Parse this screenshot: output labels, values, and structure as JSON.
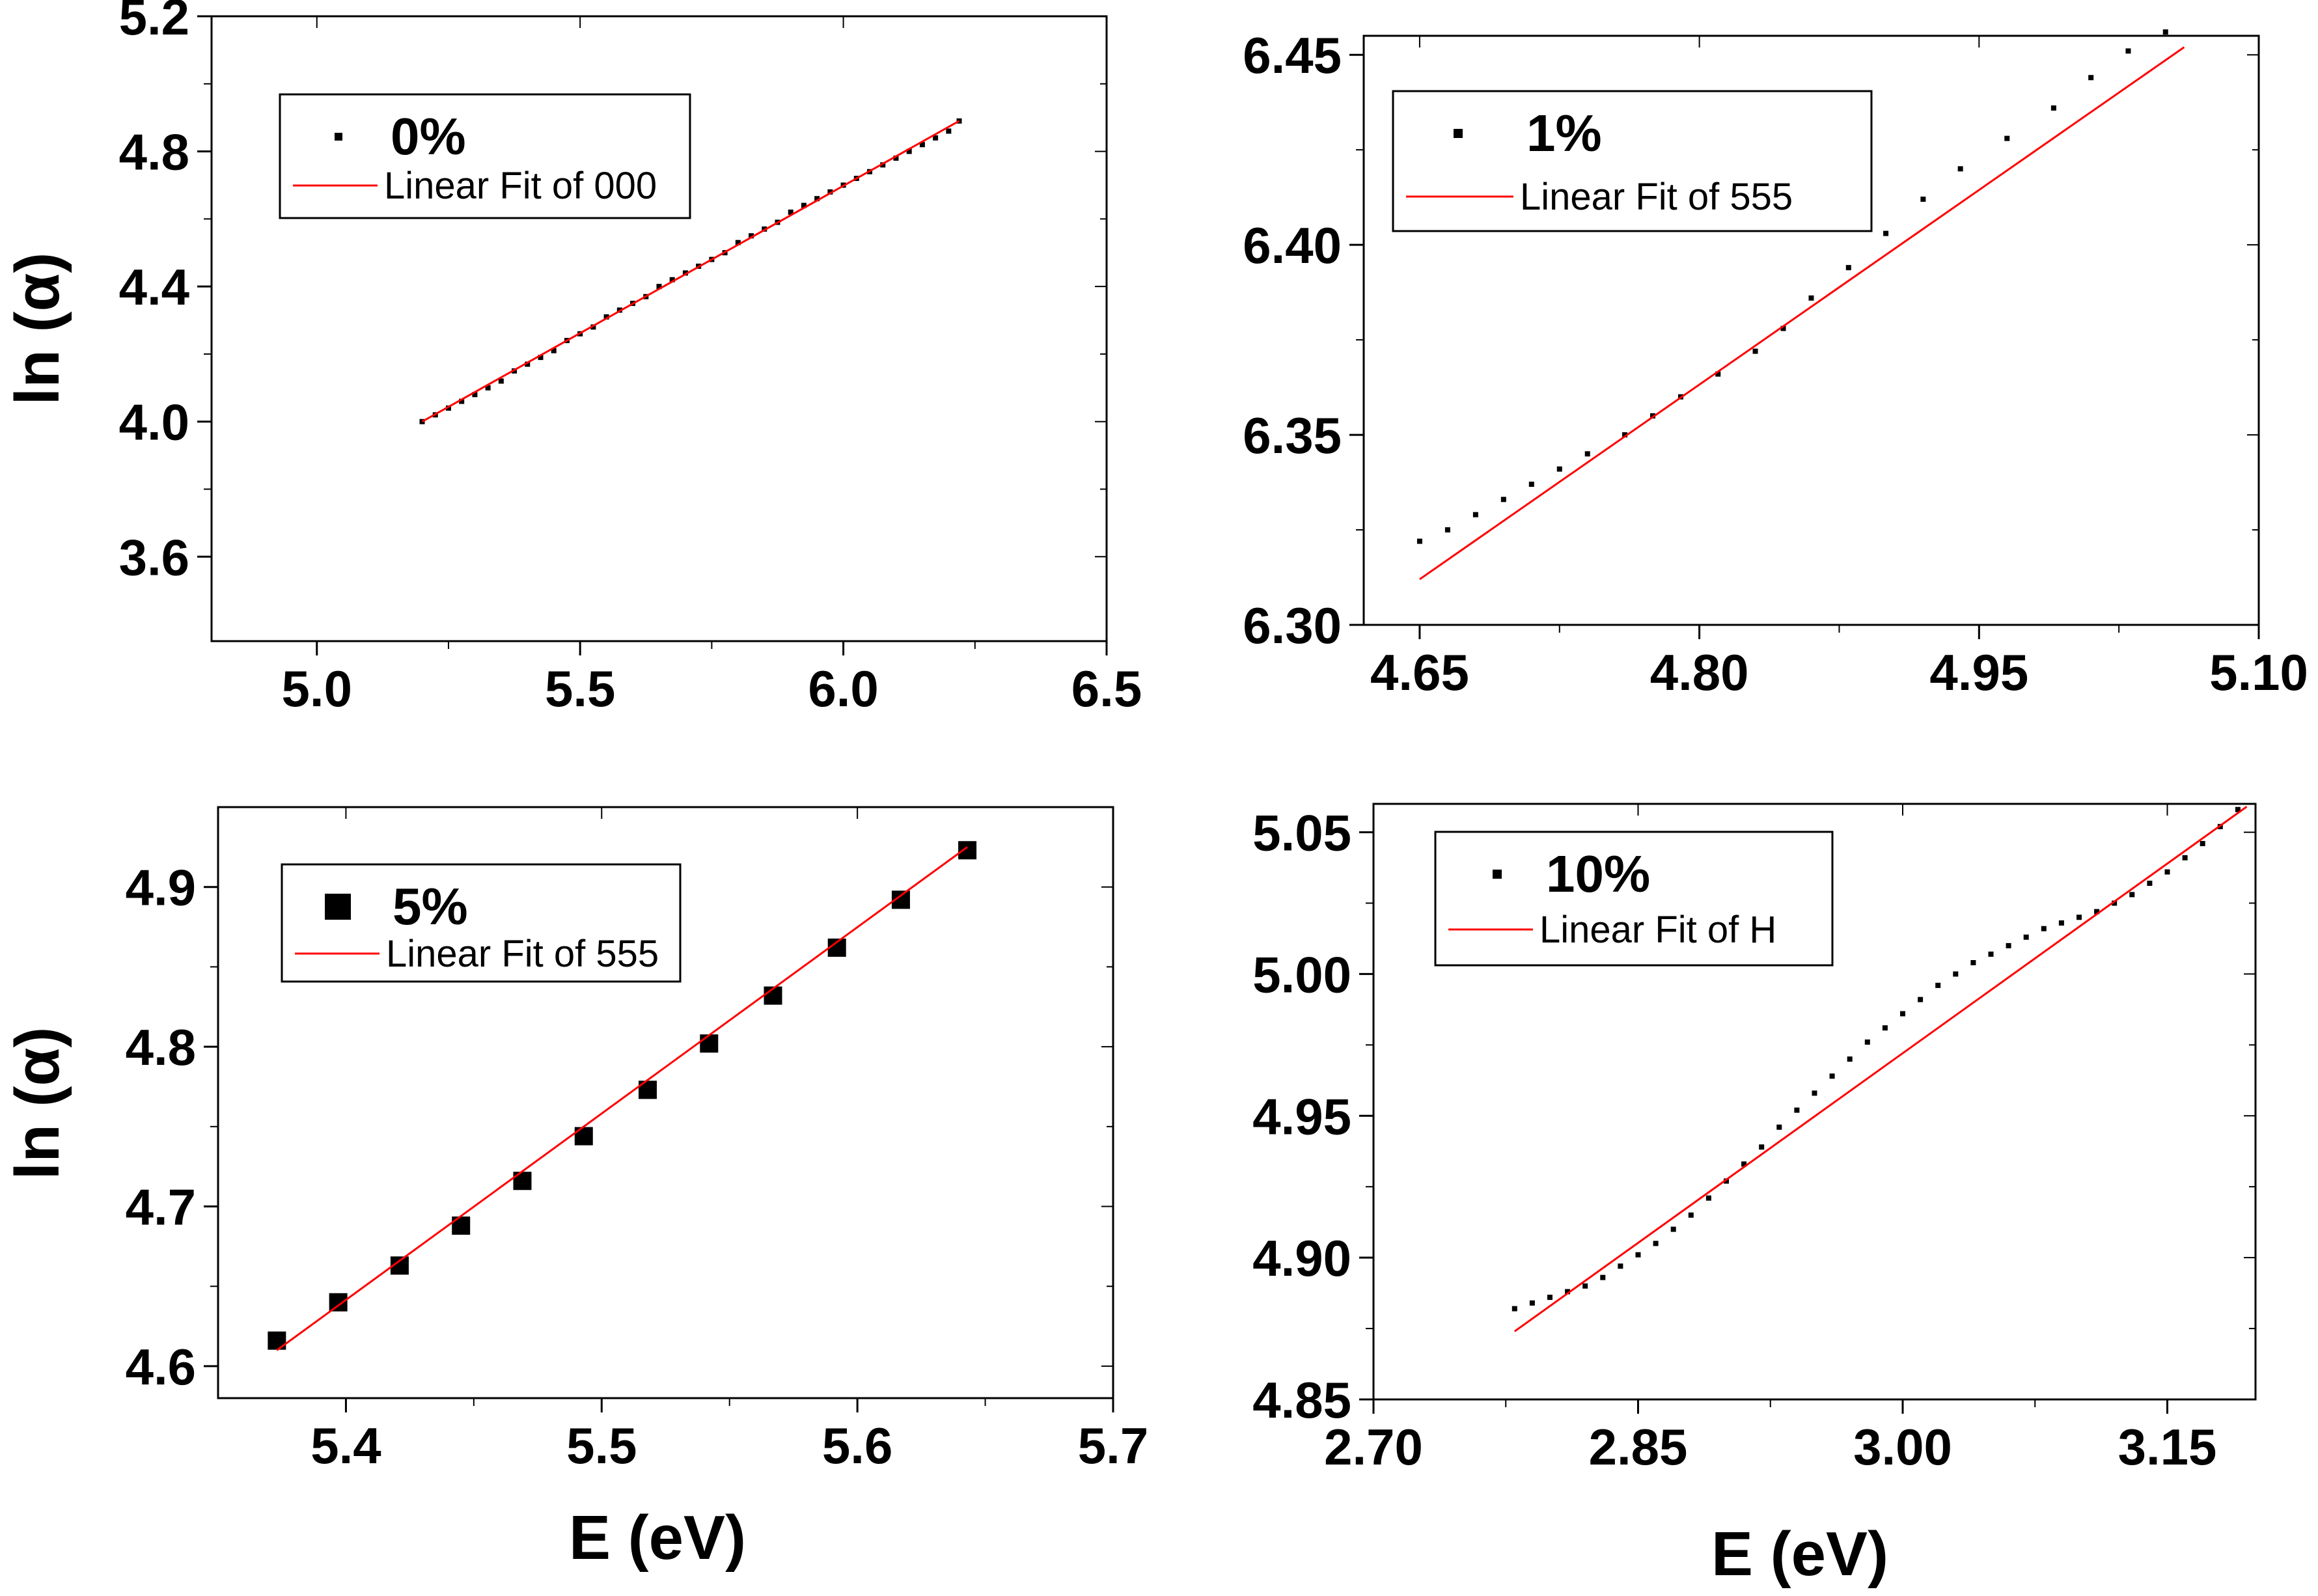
{
  "chart_data": [
    {
      "id": "p0",
      "type": "scatter",
      "ylabel": "ln (α)",
      "xlabel": "",
      "xlim": [
        4.8,
        6.5
      ],
      "ylim": [
        3.35,
        5.2
      ],
      "xticks": [
        "5.0",
        "5.5",
        "6.0",
        "6.5"
      ],
      "xtick_values": [
        5.0,
        5.5,
        6.0,
        6.5
      ],
      "yticks": [
        "3.6",
        "4.0",
        "4.4",
        "4.8",
        "5.2"
      ],
      "ytick_values": [
        3.6,
        4.0,
        4.4,
        4.8,
        5.2
      ],
      "marker": "tiny",
      "legend": {
        "series_name": "0%",
        "fit_name": "Linear Fit of 000",
        "position": "top-left"
      },
      "fit": {
        "x": [
          5.2,
          6.22
        ],
        "y": [
          4.0,
          4.89
        ],
        "color": "#ff0000"
      },
      "series": [
        {
          "name": "0%",
          "x": [
            5.2,
            5.225,
            5.25,
            5.275,
            5.3,
            5.325,
            5.35,
            5.375,
            5.4,
            5.425,
            5.45,
            5.475,
            5.5,
            5.525,
            5.55,
            5.575,
            5.6,
            5.625,
            5.65,
            5.675,
            5.7,
            5.725,
            5.75,
            5.775,
            5.8,
            5.825,
            5.85,
            5.875,
            5.9,
            5.925,
            5.95,
            5.975,
            6.0,
            6.025,
            6.05,
            6.075,
            6.1,
            6.125,
            6.15,
            6.175,
            6.2,
            6.22
          ],
          "y": [
            4.0,
            4.02,
            4.04,
            4.06,
            4.08,
            4.1,
            4.12,
            4.15,
            4.17,
            4.19,
            4.21,
            4.24,
            4.26,
            4.28,
            4.31,
            4.33,
            4.35,
            4.37,
            4.4,
            4.42,
            4.44,
            4.46,
            4.48,
            4.5,
            4.53,
            4.55,
            4.57,
            4.59,
            4.62,
            4.64,
            4.66,
            4.68,
            4.7,
            4.72,
            4.74,
            4.76,
            4.78,
            4.8,
            4.82,
            4.84,
            4.86,
            4.89
          ]
        }
      ]
    },
    {
      "id": "p1",
      "type": "scatter",
      "ylabel": "",
      "xlabel": "",
      "xlim": [
        4.62,
        5.1
      ],
      "ylim": [
        6.3,
        6.455
      ],
      "xticks": [
        "4.65",
        "4.80",
        "4.95",
        "5.10"
      ],
      "xtick_values": [
        4.65,
        4.8,
        4.95,
        5.1
      ],
      "yticks": [
        "6.30",
        "6.35",
        "6.40",
        "6.45"
      ],
      "ytick_values": [
        6.3,
        6.35,
        6.4,
        6.45
      ],
      "marker": "tiny",
      "legend": {
        "series_name": "1%",
        "fit_name": "Linear Fit of 555",
        "position": "top-left"
      },
      "fit": {
        "x": [
          4.65,
          5.06
        ],
        "y": [
          6.312,
          6.452
        ],
        "color": "#ff0000"
      },
      "series": [
        {
          "name": "1%",
          "x": [
            4.65,
            4.665,
            4.68,
            4.695,
            4.71,
            4.725,
            4.74,
            4.76,
            4.775,
            4.79,
            4.81,
            4.83,
            4.845,
            4.86,
            4.88,
            4.9,
            4.92,
            4.94,
            4.965,
            4.99,
            5.01,
            5.03,
            5.05
          ],
          "y": [
            6.322,
            6.325,
            6.329,
            6.333,
            6.337,
            6.341,
            6.345,
            6.35,
            6.355,
            6.36,
            6.366,
            6.372,
            6.378,
            6.386,
            6.394,
            6.403,
            6.412,
            6.42,
            6.428,
            6.436,
            6.444,
            6.451,
            6.456
          ]
        }
      ]
    },
    {
      "id": "p2",
      "type": "scatter",
      "ylabel": "ln (α)",
      "xlabel": "E (eV)",
      "xlim": [
        5.35,
        5.7
      ],
      "ylim": [
        4.58,
        4.95
      ],
      "xticks": [
        "5.4",
        "5.5",
        "5.6",
        "5.7"
      ],
      "xtick_values": [
        5.4,
        5.5,
        5.6,
        5.7
      ],
      "yticks": [
        "4.6",
        "4.7",
        "4.8",
        "4.9"
      ],
      "ytick_values": [
        4.6,
        4.7,
        4.8,
        4.9
      ],
      "marker": "square",
      "legend": {
        "series_name": "5%",
        "fit_name": "Linear Fit of 555",
        "position": "top-left"
      },
      "fit": {
        "x": [
          5.373,
          5.643
        ],
        "y": [
          4.61,
          4.925
        ],
        "color": "#ff0000"
      },
      "series": [
        {
          "name": "5%",
          "x": [
            5.373,
            5.397,
            5.421,
            5.445,
            5.469,
            5.493,
            5.518,
            5.542,
            5.567,
            5.592,
            5.617,
            5.643
          ],
          "y": [
            4.616,
            4.64,
            4.663,
            4.688,
            4.716,
            4.744,
            4.773,
            4.802,
            4.832,
            4.862,
            4.892,
            4.923
          ]
        }
      ]
    },
    {
      "id": "p3",
      "type": "scatter",
      "ylabel": "",
      "xlabel": "E (eV)",
      "xlim": [
        2.7,
        3.2
      ],
      "ylim": [
        4.85,
        5.06
      ],
      "xticks": [
        "2.70",
        "2.85",
        "3.00",
        "3.15"
      ],
      "xtick_values": [
        2.7,
        2.85,
        3.0,
        3.15
      ],
      "yticks": [
        "4.85",
        "4.90",
        "4.95",
        "5.00",
        "5.05"
      ],
      "ytick_values": [
        4.85,
        4.9,
        4.95,
        5.0,
        5.05
      ],
      "marker": "tiny",
      "legend": {
        "series_name": "10%",
        "fit_name": "Linear Fit of H",
        "position": "top-left"
      },
      "fit": {
        "x": [
          2.78,
          3.195
        ],
        "y": [
          4.874,
          5.059
        ],
        "color": "#ff0000"
      },
      "series": [
        {
          "name": "10%",
          "x": [
            2.78,
            2.79,
            2.8,
            2.81,
            2.82,
            2.83,
            2.84,
            2.85,
            2.86,
            2.87,
            2.88,
            2.89,
            2.9,
            2.91,
            2.92,
            2.93,
            2.94,
            2.95,
            2.96,
            2.97,
            2.98,
            2.99,
            3.0,
            3.01,
            3.02,
            3.03,
            3.04,
            3.05,
            3.06,
            3.07,
            3.08,
            3.09,
            3.1,
            3.11,
            3.12,
            3.13,
            3.14,
            3.15,
            3.16,
            3.17,
            3.18,
            3.19
          ],
          "y": [
            4.882,
            4.884,
            4.886,
            4.888,
            4.89,
            4.893,
            4.897,
            4.901,
            4.905,
            4.91,
            4.915,
            4.921,
            4.927,
            4.933,
            4.939,
            4.946,
            4.952,
            4.958,
            4.964,
            4.97,
            4.976,
            4.981,
            4.986,
            4.991,
            4.996,
            5.0,
            5.004,
            5.007,
            5.01,
            5.013,
            5.016,
            5.018,
            5.02,
            5.022,
            5.025,
            5.028,
            5.032,
            5.036,
            5.041,
            5.046,
            5.052,
            5.058
          ]
        }
      ]
    }
  ]
}
